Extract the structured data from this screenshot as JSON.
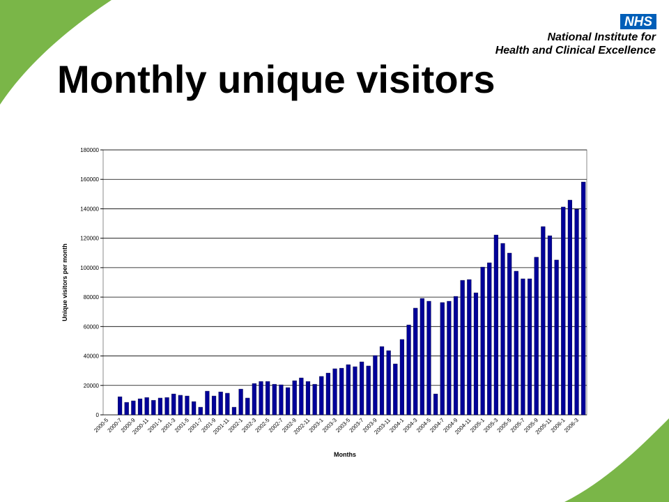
{
  "logo": {
    "badge": "NHS",
    "line1": "National Institute for",
    "line2": "Health and Clinical Excellence"
  },
  "chart_data": {
    "type": "bar",
    "title": "Monthly unique visitors",
    "x_label": "Months",
    "y_label": "Unique visitors per month",
    "categories": [
      "2000-5",
      null,
      "2000-7",
      null,
      "2000-9",
      null,
      "2000-11",
      null,
      "2001-1",
      null,
      "2001-3",
      null,
      "2001-5",
      null,
      "2001-7",
      null,
      "2001-9",
      null,
      "2001-11",
      null,
      "2002-1",
      null,
      "2002-3",
      null,
      "2002-5",
      null,
      "2002-7",
      null,
      "2002-9",
      null,
      "2002-11",
      null,
      "2003-1",
      null,
      "2003-3",
      null,
      "2003-5",
      null,
      "2003-7",
      null,
      "2003-9",
      null,
      "2003-11",
      null,
      "2004-1",
      null,
      "2004-3",
      null,
      "2004-5",
      null,
      "2004-7",
      null,
      "2004-9",
      null,
      "2004-11",
      null,
      "2005-1",
      null,
      "2005-3",
      null,
      "2005-5",
      null,
      "2005-7",
      null,
      "2005-9",
      null,
      "2005-11",
      null,
      "2006-1",
      null,
      "2006-3",
      null
    ],
    "values": [
      0,
      0,
      12300,
      8500,
      9500,
      10900,
      11800,
      9900,
      11400,
      11800,
      14200,
      13300,
      12800,
      9000,
      5200,
      16100,
      12800,
      15600,
      14700,
      5200,
      17500,
      11400,
      21300,
      22700,
      22700,
      20800,
      20400,
      18500,
      23200,
      25100,
      22700,
      20800,
      26100,
      28400,
      31300,
      31700,
      34100,
      32700,
      36000,
      33200,
      40300,
      46400,
      43600,
      34600,
      51200,
      61100,
      72500,
      79100,
      77200,
      14200,
      76300,
      77200,
      80500,
      91400,
      91900,
      82900,
      100400,
      103300,
      122200,
      116500,
      109900,
      97600,
      92400,
      92400,
      107100,
      127900,
      121700,
      105200,
      141200,
      145900,
      139700,
      158200
    ],
    "color": "#000099",
    "ylim": [
      0,
      180000
    ],
    "yticks": [
      0,
      20000,
      40000,
      60000,
      80000,
      100000,
      120000,
      140000,
      160000,
      180000
    ],
    "grid": true
  }
}
